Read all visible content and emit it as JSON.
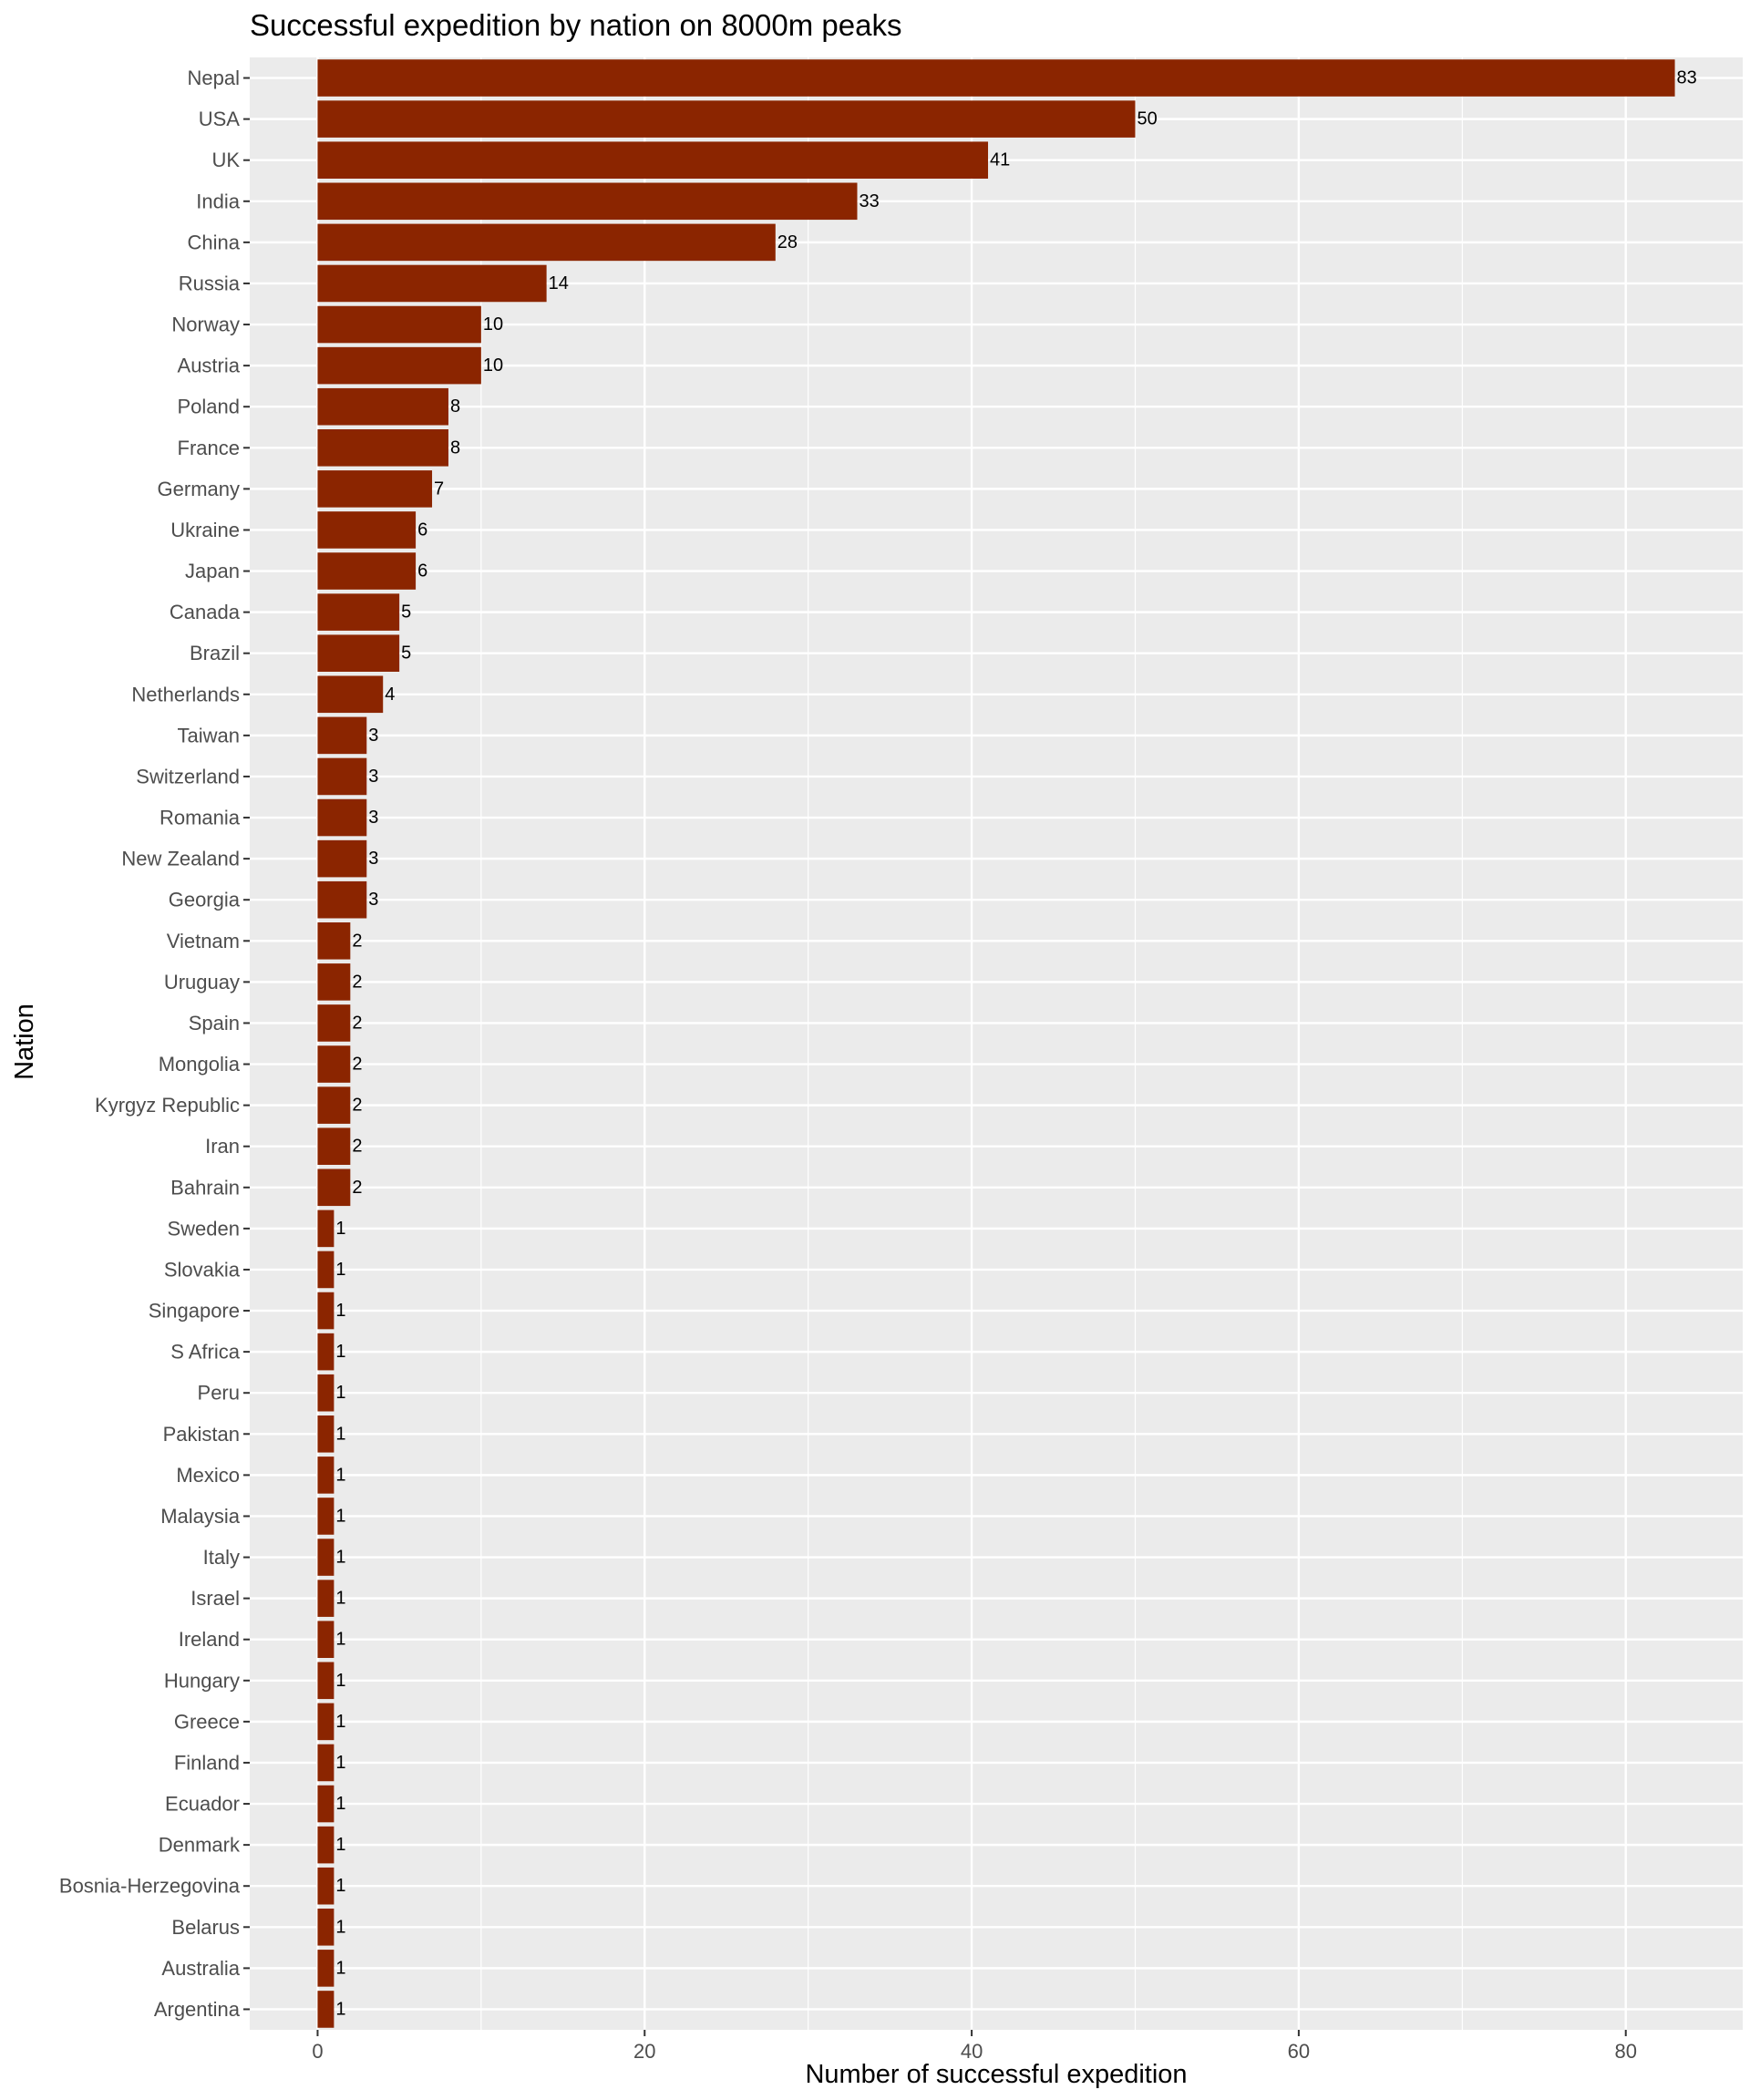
{
  "chart_data": {
    "type": "bar",
    "orientation": "horizontal",
    "title": "Successful expedition by nation on 8000m peaks",
    "xlabel": "Number of successful expedition",
    "ylabel": "Nation",
    "xlim": [
      -4.15,
      87.15
    ],
    "x_ticks": [
      0,
      20,
      40,
      60,
      80
    ],
    "grid": true,
    "bar_color": "#8b2500",
    "panel_background": "#ebebeb",
    "grid_color": "#ffffff",
    "categories": [
      "Nepal",
      "USA",
      "UK",
      "India",
      "China",
      "Russia",
      "Norway",
      "Austria",
      "Poland",
      "France",
      "Germany",
      "Ukraine",
      "Japan",
      "Canada",
      "Brazil",
      "Netherlands",
      "Taiwan",
      "Switzerland",
      "Romania",
      "New Zealand",
      "Georgia",
      "Vietnam",
      "Uruguay",
      "Spain",
      "Mongolia",
      "Kyrgyz Republic",
      "Iran",
      "Bahrain",
      "Sweden",
      "Slovakia",
      "Singapore",
      "S Africa",
      "Peru",
      "Pakistan",
      "Mexico",
      "Malaysia",
      "Italy",
      "Israel",
      "Ireland",
      "Hungary",
      "Greece",
      "Finland",
      "Ecuador",
      "Denmark",
      "Bosnia-Herzegovina",
      "Belarus",
      "Australia",
      "Argentina"
    ],
    "values": [
      83,
      50,
      41,
      33,
      28,
      14,
      10,
      10,
      8,
      8,
      7,
      6,
      6,
      5,
      5,
      4,
      3,
      3,
      3,
      3,
      3,
      2,
      2,
      2,
      2,
      2,
      2,
      2,
      1,
      1,
      1,
      1,
      1,
      1,
      1,
      1,
      1,
      1,
      1,
      1,
      1,
      1,
      1,
      1,
      1,
      1,
      1,
      1
    ]
  }
}
